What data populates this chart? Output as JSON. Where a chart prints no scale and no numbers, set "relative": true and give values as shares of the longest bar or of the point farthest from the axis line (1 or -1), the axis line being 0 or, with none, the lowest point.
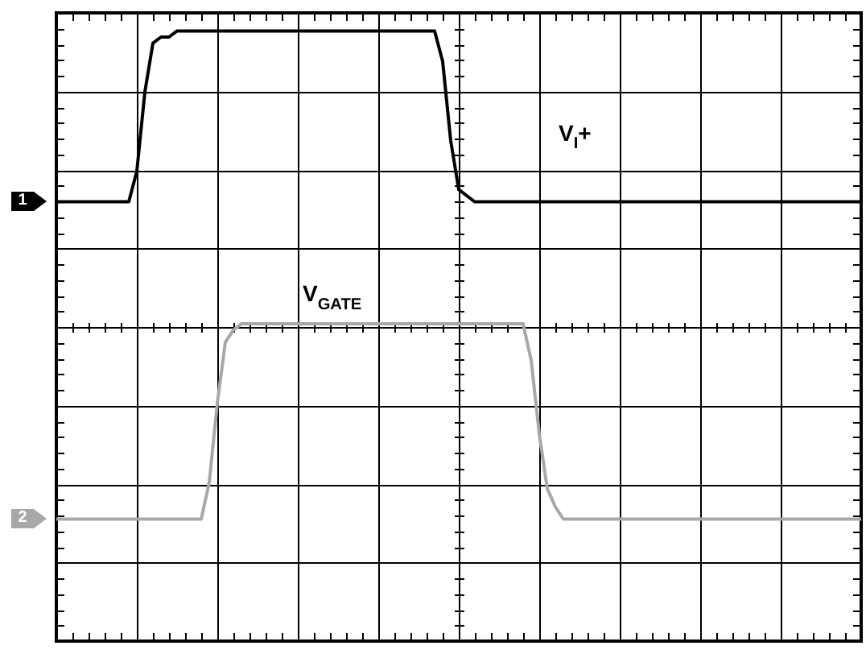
{
  "chart_data": {
    "type": "line",
    "relative": true,
    "grid": true,
    "marker": "none",
    "line_style": "solid",
    "categories": [
      null,
      null,
      null,
      null,
      null,
      null,
      null,
      null,
      null,
      null,
      null,
      null,
      null,
      null,
      null,
      null,
      null,
      null,
      null,
      null,
      null,
      null,
      null,
      null,
      null,
      null,
      null,
      null,
      null,
      null,
      null,
      null,
      null,
      null,
      null,
      null,
      null,
      null,
      null,
      null,
      null,
      null,
      null,
      null,
      null,
      null,
      null,
      null,
      null,
      null,
      null,
      null,
      null,
      null,
      null,
      null,
      null,
      null,
      null,
      null,
      null,
      null,
      null,
      null,
      null,
      null,
      null,
      null,
      null,
      null,
      null,
      null,
      null,
      null,
      null,
      null,
      null,
      null,
      null,
      null,
      null,
      null,
      null,
      null,
      null,
      null,
      null,
      null,
      null,
      null,
      null,
      null,
      null,
      null,
      null,
      null,
      null,
      null,
      null,
      null,
      null
    ],
    "series": [
      {
        "name": "V$_{I}$+",
        "color": "#000000",
        "values": [
          0.72,
          0.72,
          0.72,
          0.72,
          0.72,
          0.72,
          0.72,
          0.72,
          0.72,
          0.72,
          0.77,
          0.9,
          0.98,
          0.99,
          0.99,
          1,
          1,
          1,
          1,
          1,
          1,
          1,
          1,
          1,
          1,
          1,
          1,
          1,
          1,
          1,
          1,
          1,
          1,
          1,
          1,
          1,
          1,
          1,
          1,
          1,
          1,
          1,
          1,
          1,
          1,
          1,
          1,
          1,
          0.95,
          0.82,
          0.74,
          0.73,
          0.72,
          0.72,
          0.72,
          0.72,
          0.72,
          0.72,
          0.72,
          0.72,
          0.72,
          0.72,
          0.72,
          0.72,
          0.72,
          0.72,
          0.72,
          0.72,
          0.72,
          0.72,
          0.72,
          0.72,
          0.72,
          0.72,
          0.72,
          0.72,
          0.72,
          0.72,
          0.72,
          0.72,
          0.72,
          0.72,
          0.72,
          0.72,
          0.72,
          0.72,
          0.72,
          0.72,
          0.72,
          0.72,
          0.72,
          0.72,
          0.72,
          0.72,
          0.72,
          0.72,
          0.72,
          0.72,
          0.72,
          0.72,
          0.72
        ]
      },
      {
        "name": "V$_{GATE}$",
        "color": "#a8a8a8",
        "values": [
          0.2,
          0.2,
          0.2,
          0.2,
          0.2,
          0.2,
          0.2,
          0.2,
          0.2,
          0.2,
          0.2,
          0.2,
          0.2,
          0.2,
          0.2,
          0.2,
          0.2,
          0.2,
          0.2,
          0.26,
          0.39,
          0.49,
          0.51,
          0.52,
          0.52,
          0.52,
          0.52,
          0.52,
          0.52,
          0.52,
          0.52,
          0.52,
          0.52,
          0.52,
          0.52,
          0.52,
          0.52,
          0.52,
          0.52,
          0.52,
          0.52,
          0.52,
          0.52,
          0.52,
          0.52,
          0.52,
          0.52,
          0.52,
          0.52,
          0.52,
          0.52,
          0.52,
          0.52,
          0.52,
          0.52,
          0.52,
          0.52,
          0.52,
          0.52,
          0.46,
          0.34,
          0.25,
          0.22,
          0.2,
          0.2,
          0.2,
          0.2,
          0.2,
          0.2,
          0.2,
          0.2,
          0.2,
          0.2,
          0.2,
          0.2,
          0.2,
          0.2,
          0.2,
          0.2,
          0.2,
          0.2,
          0.2,
          0.2,
          0.2,
          0.2,
          0.2,
          0.2,
          0.2,
          0.2,
          0.2,
          0.2,
          0.2,
          0.2,
          0.2,
          0.2,
          0.2,
          0.2,
          0.2,
          0.2,
          0.2,
          0.2
        ]
      }
    ],
    "annotations": [
      "1",
      "2"
    ]
  }
}
